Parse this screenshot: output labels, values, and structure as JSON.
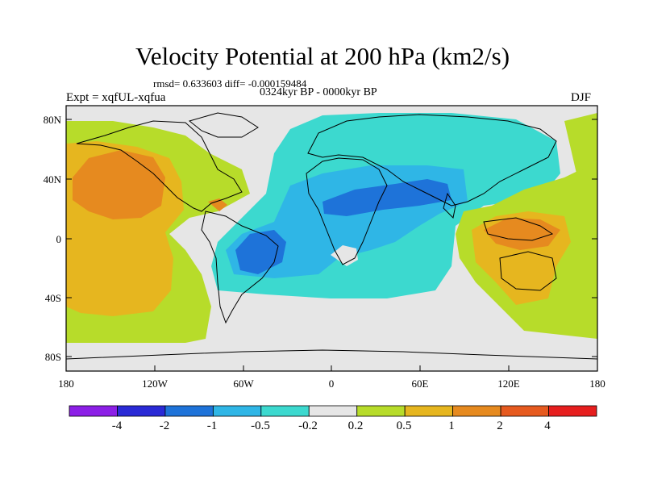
{
  "title": "Velocity Potential at 200 hPa (km2/s)",
  "stats": "rmsd= 0.633603 diff= -0.000159484",
  "period": "0324kyr BP - 0000kyr BP",
  "experiment": "Expt = xqfUL-xqfua",
  "season": "DJF",
  "axes": {
    "y_ticks": [
      "80N",
      "40N",
      "0",
      "40S",
      "80S"
    ],
    "x_ticks": [
      "180",
      "120W",
      "60W",
      "0",
      "60E",
      "120E",
      "180"
    ]
  },
  "colorbar": {
    "labels": [
      "-4",
      "-2",
      "-1",
      "-0.5",
      "-0.2",
      "0.2",
      "0.5",
      "1",
      "2",
      "4"
    ],
    "colors": [
      "#8c1fe6",
      "#2a2ad6",
      "#1e73d9",
      "#2fb6e6",
      "#3cd9cf",
      "#e6e6e6",
      "#b7dc2a",
      "#e6b61f",
      "#e68a1f",
      "#e65a1f",
      "#e61e1e"
    ]
  }
}
